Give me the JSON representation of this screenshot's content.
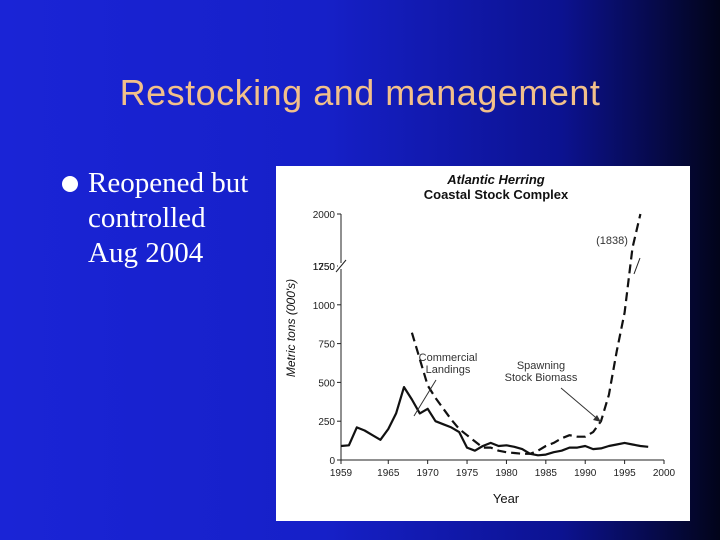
{
  "slide": {
    "title": "Restocking and management",
    "bullet_lines": [
      "Reopened but",
      "controlled",
      "Aug 2004"
    ]
  },
  "chart_data": {
    "type": "line",
    "title": "Atlantic Herring",
    "subtitle": "Coastal Stock Complex",
    "xlabel": "Year",
    "ylabel": "Metric tons (000's)",
    "xlim": [
      1959,
      2000
    ],
    "ylim": [
      0,
      2000
    ],
    "axis_break": true,
    "x_ticks": [
      1959,
      1965,
      1970,
      1975,
      1980,
      1985,
      1990,
      1995,
      2000
    ],
    "y_tick_labels": [
      "0",
      "250",
      "500",
      "750",
      "1000",
      "1250",
      "1750",
      "2000"
    ],
    "annotations": [
      {
        "text": [
          "Commercial",
          "Landings"
        ],
        "series": "Commercial Landings"
      },
      {
        "text": [
          "Spawning",
          "Stock Biomass"
        ],
        "series": "Spawning Stock Biomass"
      },
      {
        "text": [
          "(1838)"
        ],
        "series": "Spawning Stock Biomass"
      }
    ],
    "series": [
      {
        "name": "Commercial Landings",
        "style": "solid",
        "x": [
          1959,
          1960,
          1961,
          1962,
          1963,
          1964,
          1965,
          1966,
          1967,
          1968,
          1969,
          1970,
          1971,
          1972,
          1973,
          1974,
          1975,
          1976,
          1977,
          1978,
          1979,
          1980,
          1981,
          1982,
          1983,
          1984,
          1985,
          1986,
          1987,
          1988,
          1989,
          1990,
          1991,
          1992,
          1993,
          1994,
          1995,
          1996,
          1997,
          1998
        ],
        "y": [
          90,
          95,
          210,
          190,
          160,
          130,
          200,
          300,
          470,
          390,
          300,
          330,
          250,
          230,
          210,
          180,
          80,
          60,
          90,
          110,
          90,
          95,
          85,
          70,
          40,
          30,
          35,
          50,
          60,
          80,
          80,
          90,
          70,
          75,
          90,
          100,
          110,
          100,
          90,
          85
        ]
      },
      {
        "name": "Spawning Stock Biomass",
        "style": "dashed",
        "x": [
          1968,
          1969,
          1970,
          1971,
          1972,
          1973,
          1974,
          1975,
          1976,
          1977,
          1978,
          1979,
          1980,
          1981,
          1982,
          1983,
          1984,
          1985,
          1986,
          1987,
          1988,
          1989,
          1990,
          1991,
          1992,
          1993,
          1994,
          1995,
          1996,
          1997
        ],
        "y": [
          820,
          650,
          480,
          400,
          330,
          260,
          200,
          160,
          120,
          80,
          80,
          60,
          50,
          45,
          40,
          40,
          60,
          90,
          110,
          140,
          160,
          150,
          150,
          180,
          250,
          420,
          700,
          950,
          1838,
          2000
        ]
      }
    ]
  }
}
